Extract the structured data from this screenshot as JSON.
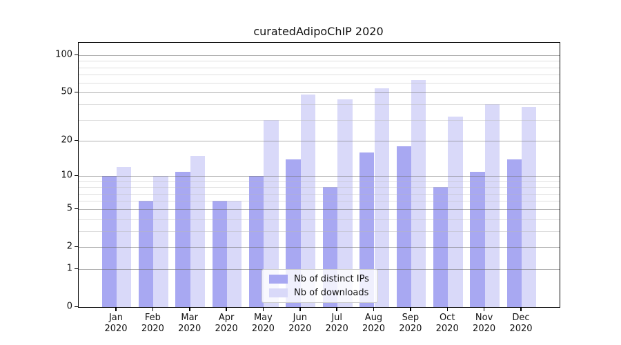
{
  "chart_data": {
    "type": "bar",
    "title": "curatedAdipoChIP 2020",
    "categories": [
      "Jan",
      "Feb",
      "Mar",
      "Apr",
      "May",
      "Jun",
      "Jul",
      "Aug",
      "Sep",
      "Oct",
      "Nov",
      "Dec"
    ],
    "category_year": "2020",
    "series": [
      {
        "name": "Nb of distinct IPs",
        "color": "#a8a8f2",
        "values": [
          10,
          6,
          11,
          6,
          10,
          14,
          8,
          16,
          18,
          8,
          11,
          14
        ]
      },
      {
        "name": "Nb of downloads",
        "color": "#d9d9f9",
        "values": [
          12,
          10,
          15,
          6,
          30,
          48,
          44,
          54,
          63,
          32,
          40,
          38
        ]
      }
    ],
    "xlabel": "",
    "ylabel": "",
    "yscale": "log1p",
    "ylim": [
      0,
      126
    ],
    "y_major_ticks": [
      0,
      1,
      2,
      5,
      10,
      20,
      50,
      100
    ],
    "y_minor_ticks": [
      3,
      4,
      6,
      7,
      8,
      9,
      30,
      40,
      60,
      70,
      80,
      90
    ],
    "grid": "on",
    "legend_position": "lower-center"
  },
  "style": {
    "axis_color": "#000000",
    "text_color": "#111111",
    "background": "#ffffff"
  }
}
